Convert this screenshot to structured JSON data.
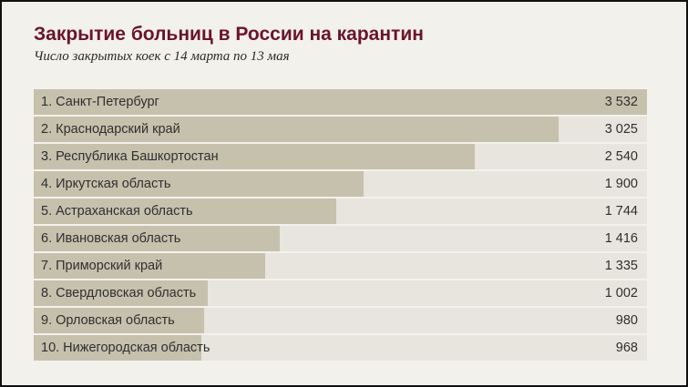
{
  "title": "Закрытие больниц в России на карантин",
  "subtitle": "Число закрытых коек с 14 марта по 13 мая",
  "colors": {
    "title": "#6b1428",
    "bar": "#c6c1ad",
    "track": "#e8e5de",
    "background": "#f3f1ec"
  },
  "chart_data": {
    "type": "bar",
    "orientation": "horizontal",
    "title": "Закрытие больниц в России на карантин",
    "subtitle": "Число закрытых коек с 14 марта по 13 мая",
    "categories": [
      "1. Санкт-Петербург",
      "2. Краснодарский край",
      "3. Республика Башкортостан",
      "4. Иркутская область",
      "5. Астраханская область",
      "6. Ивановская область",
      "7. Приморский край",
      "8. Свердловская область",
      "9. Орловская область",
      "10. Нижегородская область"
    ],
    "values": [
      3532,
      3025,
      2540,
      1900,
      1744,
      1416,
      1335,
      1002,
      980,
      968
    ],
    "value_labels": [
      "3 532",
      "3 025",
      "2 540",
      "1 900",
      "1 744",
      "1 416",
      "1 335",
      "1 002",
      "980",
      "968"
    ],
    "xlim": [
      0,
      3532
    ],
    "grid": false,
    "legend": "none"
  }
}
